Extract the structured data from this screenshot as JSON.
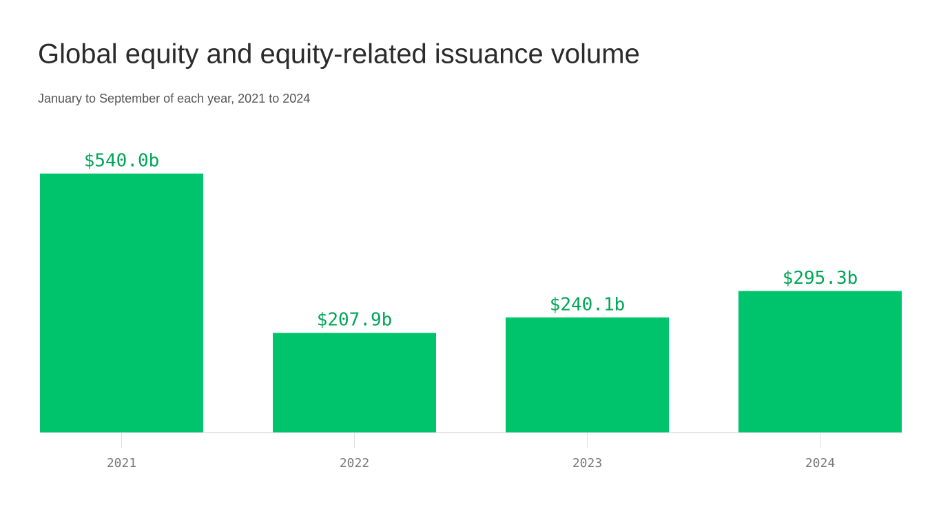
{
  "chart_data": {
    "type": "bar",
    "title": "Global equity and equity-related issuance volume",
    "subtitle": "January to September of each year, 2021 to 2024",
    "categories": [
      "2021",
      "2022",
      "2023",
      "2024"
    ],
    "values": [
      540.0,
      207.9,
      240.1,
      295.3
    ],
    "value_labels": [
      "$540.0b",
      "$207.9b",
      "$240.1b",
      "$295.3b"
    ],
    "color": "#00c46b"
  }
}
